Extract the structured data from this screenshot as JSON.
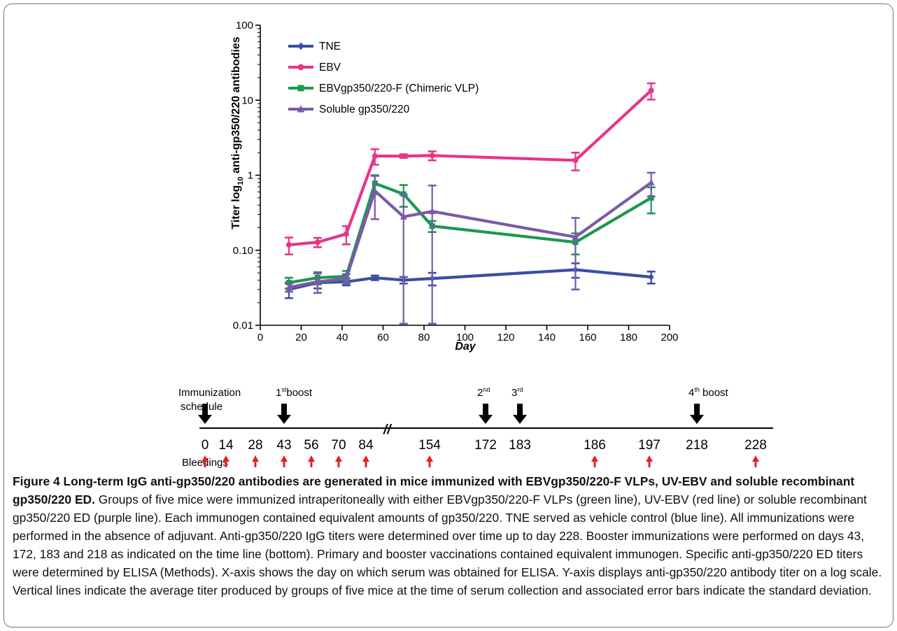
{
  "chart_data": {
    "type": "line",
    "xlabel": "Day",
    "ylabel": "Titer log",
    "ylabel_sub": "10",
    "ylabel_rest": " anti-gp350/220 antibodies",
    "y_scale": "log",
    "xlim": [
      0,
      200
    ],
    "ylim": [
      0.01,
      100
    ],
    "x_ticks": [
      0,
      20,
      40,
      60,
      80,
      100,
      120,
      140,
      160,
      180,
      200
    ],
    "y_ticks": [
      0.01,
      0.1,
      1,
      10,
      100
    ],
    "y_tick_labels": [
      "0.01",
      "0.10",
      "1",
      "10",
      "100"
    ],
    "legend_position": "top-left",
    "series": [
      {
        "name": "TNE",
        "color": "#3a4fa3",
        "marker": "diamond",
        "x": [
          14,
          28,
          42,
          56,
          70,
          84,
          154,
          191
        ],
        "y": [
          0.03,
          0.037,
          0.038,
          0.043,
          0.04,
          0.042,
          0.055,
          0.044
        ],
        "err": [
          0.007,
          0.006,
          0.004,
          0.003,
          0.004,
          0.008,
          0.012,
          0.008
        ]
      },
      {
        "name": "EBV",
        "color": "#e6358b",
        "marker": "circle",
        "x": [
          14,
          28,
          42,
          56,
          70,
          84,
          154,
          191
        ],
        "y": [
          0.118,
          0.128,
          0.165,
          1.8,
          1.8,
          1.83,
          1.58,
          13.5
        ],
        "err": [
          0.03,
          0.018,
          0.045,
          0.42,
          0.1,
          0.25,
          0.42,
          3.3
        ]
      },
      {
        "name": "EBVgp350/220-F (Chimeric VLP)",
        "color": "#1b9850",
        "marker": "square",
        "x": [
          14,
          28,
          42,
          56,
          70,
          84,
          154,
          191
        ],
        "y": [
          0.037,
          0.043,
          0.045,
          0.78,
          0.56,
          0.21,
          0.128,
          0.5
        ],
        "err": [
          0.006,
          0.008,
          0.008,
          0.22,
          0.18,
          0.035,
          0.04,
          0.19
        ]
      },
      {
        "name": "Soluble gp350/220",
        "color": "#7b59aa",
        "marker": "triangle",
        "x": [
          14,
          28,
          42,
          56,
          70,
          84,
          154,
          191
        ],
        "y": [
          0.032,
          0.038,
          0.042,
          0.62,
          0.28,
          0.33,
          0.15,
          0.8
        ],
        "err": [
          0.004,
          0.011,
          0.006,
          0.36,
          0.27,
          0.4,
          0.12,
          0.28
        ]
      }
    ]
  },
  "schedule": {
    "immunization_label_1": "Immunization",
    "immunization_label_2": "schedule",
    "bleedings_label": "Bleedings",
    "break_mark": "//",
    "boost_labels": [
      {
        "day": "43",
        "main": "1",
        "sup": "st",
        "rest": "boost"
      },
      {
        "day": "172",
        "main": "2",
        "sup": "nd",
        "rest": ""
      },
      {
        "day": "183",
        "main": "3",
        "sup": "rd",
        "rest": ""
      },
      {
        "day": "218",
        "main": "4",
        "sup": "th",
        "rest": " boost"
      }
    ],
    "days": [
      "0",
      "14",
      "28",
      "43",
      "56",
      "70",
      "84",
      "154",
      "172",
      "183",
      "186",
      "197",
      "218",
      "228"
    ],
    "immunization_days": [
      "0",
      "43",
      "172",
      "183",
      "218"
    ],
    "bleeding_days": [
      "0",
      "14",
      "28",
      "43",
      "56",
      "70",
      "84",
      "154",
      "186",
      "197",
      "228"
    ],
    "arrow_color_immunization": "#000000",
    "arrow_color_bleeding": "#e2231a"
  },
  "caption": {
    "title": "Figure 4 Long-term IgG anti-gp350/220 antibodies are generated in mice immunized with EBVgp350/220-F VLPs, UV-EBV and soluble recombinant gp350/220 ED.",
    "body": " Groups of five mice were immunized intraperitoneally with either EBVgp350/220-F VLPs (green line), UV-EBV (red line) or soluble recombinant gp350/220 ED (purple line). Each immunogen contained equivalent amounts of gp350/220. TNE served as vehicle control (blue line). All immunizations were performed in the absence of adjuvant. Anti-gp350/220 IgG titers were determined over time up to day 228. Booster immunizations were performed on days 43, 172, 183 and 218 as indicated on the time line (bottom). Primary and booster vaccinations contained equivalent immunogen. Specific anti-gp350/220 ED titers were determined by ELISA (Methods). X-axis shows the day on which serum was obtained for ELISA. Y-axis displays anti-gp350/220 antibody titer on a log scale. Vertical lines indicate the average titer produced by groups of five mice at the time of serum collection and associated error bars indicate the standard deviation."
  }
}
